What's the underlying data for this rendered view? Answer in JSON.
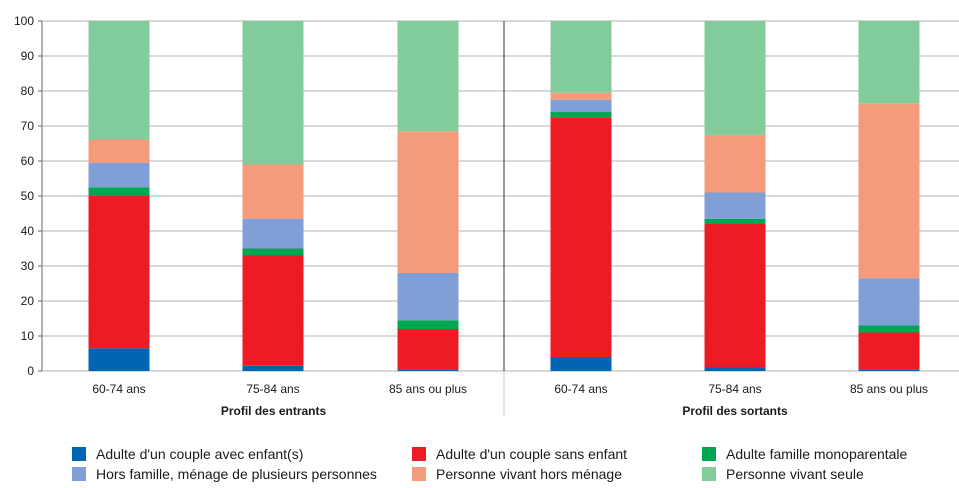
{
  "chart_data": {
    "type": "stacked-bar",
    "ylim": [
      0,
      100
    ],
    "yticks": [
      0,
      10,
      20,
      30,
      40,
      50,
      60,
      70,
      80,
      90,
      100
    ],
    "grid": true,
    "legend_position": "bottom",
    "groups": [
      {
        "label": "Profil des entrants",
        "categories": [
          "60-74 ans",
          "75-84 ans",
          "85 ans ou plus"
        ]
      },
      {
        "label": "Profil des sortants",
        "categories": [
          "60-74 ans",
          "75-84 ans",
          "85 ans ou plus"
        ]
      }
    ],
    "series": [
      {
        "name": "Adulte d'un couple avec enfant(s)",
        "color": "#0066b3",
        "values": [
          6.5,
          1.5,
          0.5,
          4.0,
          1.0,
          0.5
        ]
      },
      {
        "name": "Adulte d'un couple sans enfant",
        "color": "#ed1c24",
        "values": [
          43.5,
          31.5,
          11.5,
          68.5,
          41.0,
          10.5
        ]
      },
      {
        "name": "Adulte famille monoparentale",
        "color": "#00a651",
        "values": [
          2.5,
          2.0,
          2.5,
          1.5,
          1.5,
          2.0
        ]
      },
      {
        "name": "Hors famille, ménage de plusieurs personnes",
        "color": "#7f9fd6",
        "values": [
          7.0,
          8.5,
          13.5,
          3.5,
          7.5,
          13.5
        ]
      },
      {
        "name": "Personne vivant hors ménage",
        "color": "#f59a7a",
        "values": [
          6.5,
          15.5,
          40.5,
          2.0,
          16.5,
          50.0
        ]
      },
      {
        "name": "Personne vivant seule",
        "color": "#82cc9c",
        "values": [
          34.0,
          41.0,
          31.5,
          20.5,
          32.5,
          23.5
        ]
      }
    ]
  }
}
